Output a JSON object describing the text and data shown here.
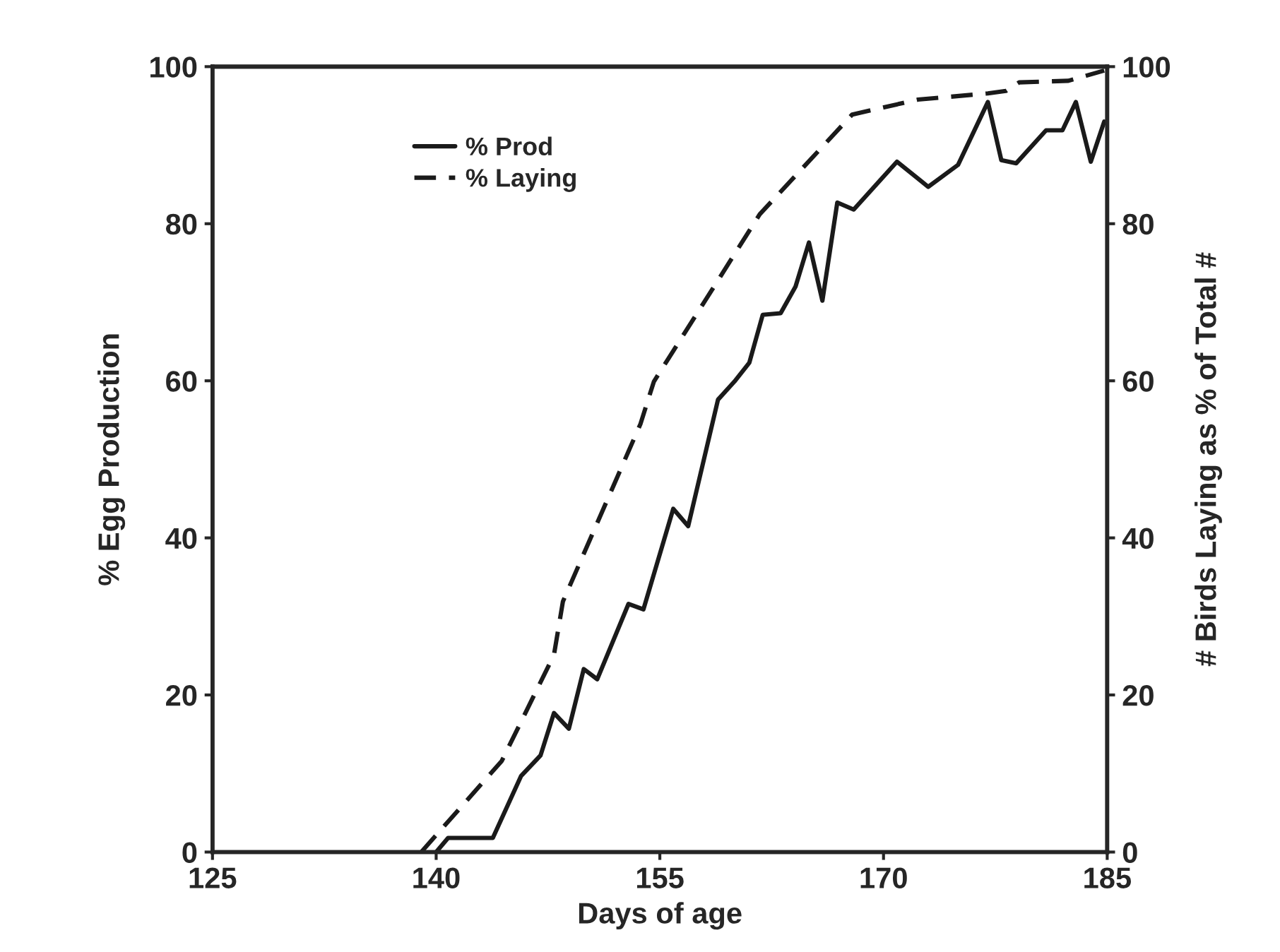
{
  "chart_data": {
    "type": "line",
    "xlabel": "Days of age",
    "ylabel": "% Egg Production",
    "y2label": "# Birds Laying as % of Total #",
    "xlim": [
      125,
      185
    ],
    "xticks": [
      125,
      140,
      155,
      170,
      185
    ],
    "ylim": [
      0,
      100
    ],
    "yticks": [
      0,
      20,
      40,
      60,
      80,
      100
    ],
    "y2lim": [
      0,
      100
    ],
    "y2ticks": [
      0,
      20,
      40,
      60,
      80,
      100
    ],
    "grid": false,
    "legend": "top left",
    "marker": "none",
    "series": [
      {
        "name": "% Prod",
        "color": "#1a1a1a",
        "line_style": "solid",
        "x": [
          140.0,
          140.8,
          143.8,
          145.7,
          147.0,
          147.9,
          148.9,
          149.9,
          150.8,
          152.9,
          153.9,
          155.9,
          156.9,
          158.9,
          160.0,
          161.0,
          161.9,
          163.1,
          164.1,
          165.0,
          165.9,
          166.9,
          168.0,
          170.9,
          173.0,
          175.0,
          177.0,
          177.9,
          178.9,
          180.9,
          182.0,
          182.9,
          183.9,
          184.8
        ],
        "values": [
          0,
          1.8,
          1.8,
          9.7,
          12.3,
          17.7,
          15.7,
          23.3,
          22,
          31.6,
          30.9,
          43.7,
          41.5,
          57.6,
          59.9,
          62.3,
          68.4,
          68.6,
          72,
          77.6,
          70.2,
          82.7,
          81.8,
          87.9,
          84.7,
          87.5,
          95.5,
          88.1,
          87.7,
          91.9,
          91.9,
          95.5,
          87.9,
          93
        ]
      },
      {
        "name": "% Laying",
        "color": "#1a1a1a",
        "line_style": "dashed",
        "x": [
          139.0,
          144.4,
          147.9,
          148.5,
          153.7,
          154.6,
          161.7,
          167.9,
          172.3,
          177.0,
          178.2,
          179.1,
          182.4,
          184.8
        ],
        "values": [
          0,
          11.6,
          25.1,
          31.9,
          54.5,
          59.9,
          81.2,
          93.9,
          95.8,
          96.6,
          96.9,
          98.0,
          98.2,
          99.5
        ]
      }
    ]
  }
}
